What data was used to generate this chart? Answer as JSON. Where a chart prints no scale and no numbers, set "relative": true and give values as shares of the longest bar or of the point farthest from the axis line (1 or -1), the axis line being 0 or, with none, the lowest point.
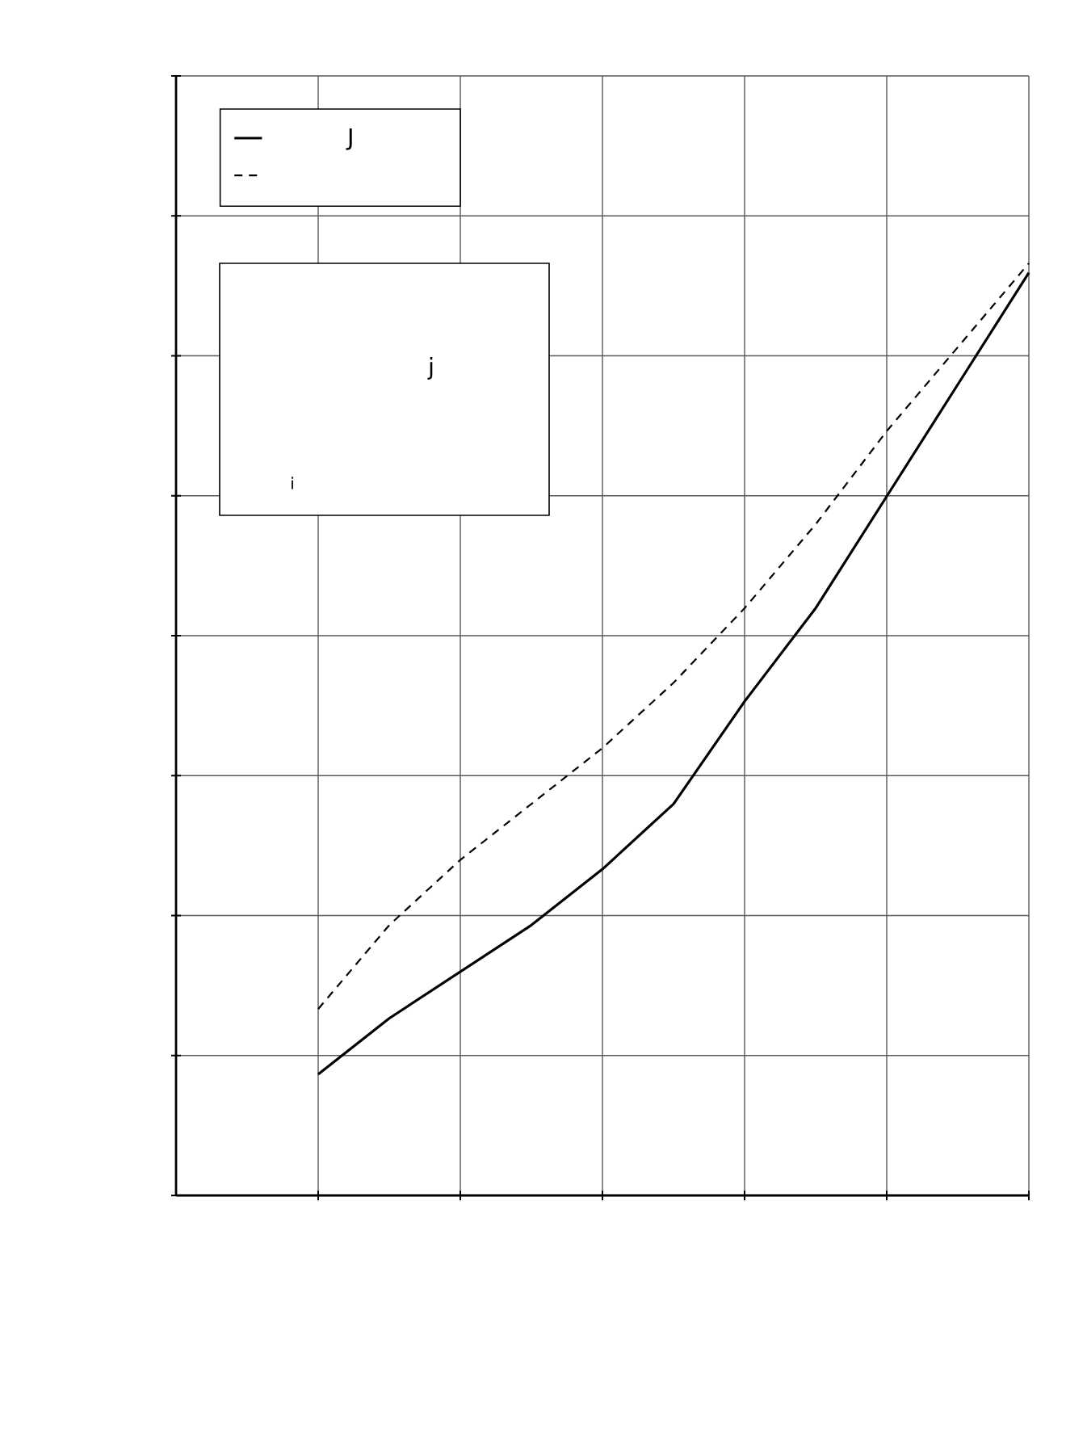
{
  "chart_data": {
    "type": "line",
    "relative": true,
    "grid": true,
    "legend": "top left",
    "categories": [
      null,
      null,
      null,
      null,
      null,
      null,
      null,
      null,
      null,
      null,
      null
    ],
    "series": [
      {
        "name": "J",
        "color": "#000000",
        "line_style": "solid",
        "values": [
          0.13,
          0.19,
          0.24,
          0.29,
          0.35,
          0.42,
          0.53,
          0.63,
          0.75,
          0.87,
          0.99
        ]
      },
      {
        "color": "#000000",
        "line_style": "dashed",
        "values": [
          0.2,
          0.29,
          0.36,
          0.42,
          0.48,
          0.55,
          0.63,
          0.72,
          0.82,
          0.91,
          1.0
        ]
      }
    ],
    "annotations": [
      "j",
      "i"
    ]
  }
}
